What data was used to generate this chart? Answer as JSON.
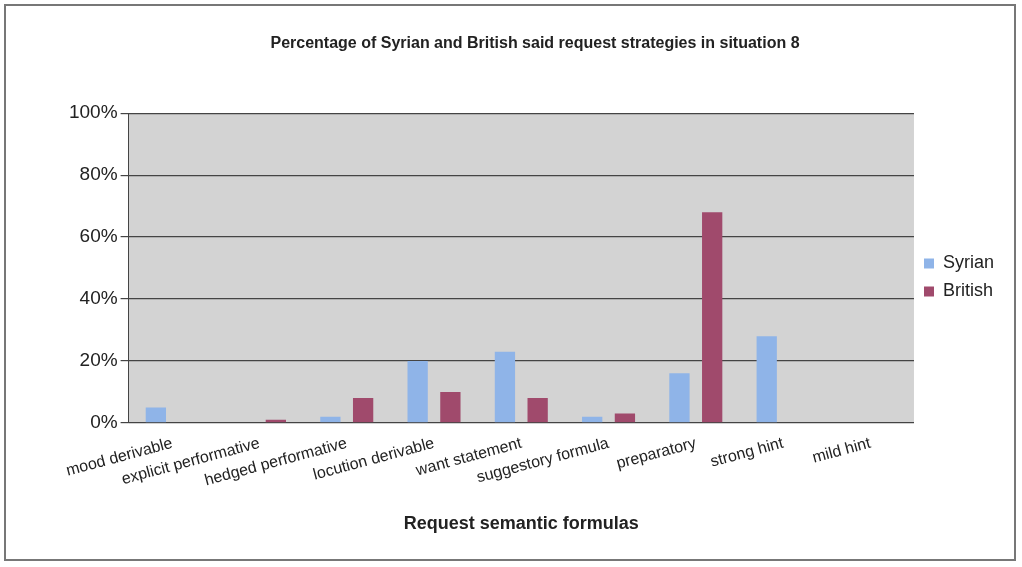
{
  "chart_data": {
    "type": "bar",
    "title": "Percentage of Syrian and British said request strategies in situation 8",
    "xlabel": "Request semantic formulas",
    "categories": [
      "mood derivable",
      "explicit performative",
      "hedged performative",
      "locution derivable",
      "want statement",
      "suggestory formula",
      "preparatory",
      "strong hint",
      "mild hint"
    ],
    "series": [
      {
        "name": "Syrian",
        "color": "#8fb4e8",
        "values": [
          5,
          0,
          2,
          20,
          23,
          2,
          16,
          28,
          0
        ]
      },
      {
        "name": "British",
        "color": "#a04a6c",
        "values": [
          0,
          1,
          8,
          10,
          8,
          3,
          68,
          0,
          0
        ]
      }
    ],
    "ylim": [
      0,
      100
    ],
    "yticks": [
      {
        "value": 0,
        "label": "0%"
      },
      {
        "value": 20,
        "label": "20%"
      },
      {
        "value": 40,
        "label": "40%"
      },
      {
        "value": 60,
        "label": "60%"
      },
      {
        "value": 80,
        "label": "80%"
      },
      {
        "value": 100,
        "label": "100%"
      }
    ],
    "grid": "y",
    "legend": "right"
  }
}
